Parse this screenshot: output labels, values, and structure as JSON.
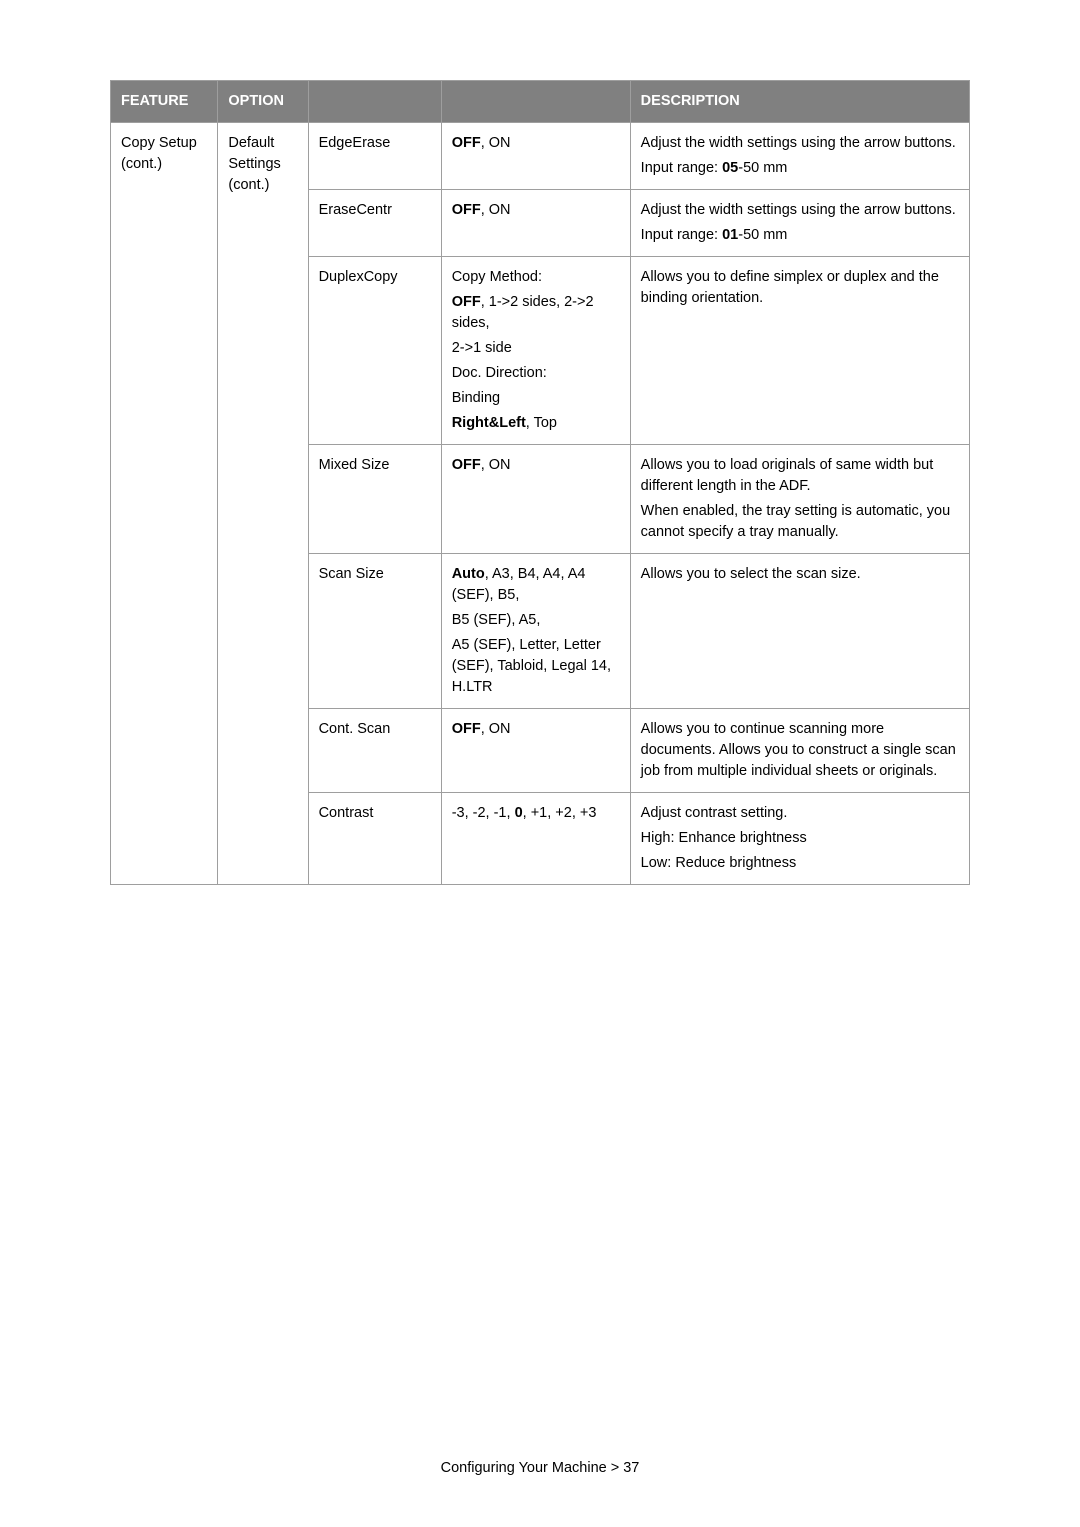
{
  "table": {
    "header": {
      "feature": "FEATURE",
      "option": "OPTION",
      "col3": "",
      "col4": "",
      "description": "DESCRIPTION"
    },
    "feature_lines": [
      "Copy Setup",
      "(cont.)"
    ],
    "option_lines": [
      "Default",
      "Settings",
      "(cont.)"
    ],
    "rows": [
      {
        "sub": "EdgeErase",
        "val_parts": [
          {
            "t": "OFF",
            "b": true
          },
          {
            "t": ", ON",
            "b": false
          }
        ],
        "desc_blocks": [
          [
            {
              "t": "Adjust the width settings using the arrow buttons.",
              "b": false
            }
          ],
          [
            {
              "t": "Input range: ",
              "b": false
            },
            {
              "t": "05",
              "b": true
            },
            {
              "t": "-50 mm",
              "b": false
            }
          ]
        ]
      },
      {
        "sub": "EraseCentr",
        "val_parts": [
          {
            "t": "OFF",
            "b": true
          },
          {
            "t": ", ON",
            "b": false
          }
        ],
        "desc_blocks": [
          [
            {
              "t": "Adjust the width settings using the arrow buttons.",
              "b": false
            }
          ],
          [
            {
              "t": "Input range: ",
              "b": false
            },
            {
              "t": "01",
              "b": true
            },
            {
              "t": "-50 mm",
              "b": false
            }
          ]
        ]
      },
      {
        "sub": "DuplexCopy",
        "val_blocks": [
          [
            {
              "t": "Copy Method:",
              "b": false
            }
          ],
          [
            {
              "t": "OFF",
              "b": true
            },
            {
              "t": ", 1->2 sides, 2->2 sides,",
              "b": false
            }
          ],
          [
            {
              "t": "2->1 side",
              "b": false
            }
          ],
          [
            {
              "t": "Doc. Direction:",
              "b": false
            }
          ],
          [
            {
              "t": "Binding",
              "b": false
            }
          ],
          [
            {
              "t": "Right&Left",
              "b": true
            },
            {
              "t": ", Top",
              "b": false
            }
          ]
        ],
        "desc_blocks": [
          [
            {
              "t": "Allows you to define simplex or duplex and the binding orientation.",
              "b": false
            }
          ]
        ]
      },
      {
        "sub": "Mixed Size",
        "val_parts": [
          {
            "t": "OFF",
            "b": true
          },
          {
            "t": ", ON",
            "b": false
          }
        ],
        "desc_blocks": [
          [
            {
              "t": "Allows you to load originals of same width but different length in the ADF.",
              "b": false
            }
          ],
          [
            {
              "t": "When enabled, the tray setting is automatic, you cannot specify a tray manually.",
              "b": false
            }
          ]
        ]
      },
      {
        "sub": "Scan Size",
        "val_blocks": [
          [
            {
              "t": "Auto",
              "b": true
            },
            {
              "t": ", A3, B4, A4, A4 (SEF), B5,",
              "b": false
            }
          ],
          [
            {
              "t": "B5 (SEF), A5,",
              "b": false
            }
          ],
          [
            {
              "t": "A5 (SEF), Letter, Letter (SEF), Tabloid, Legal 14, H.LTR",
              "b": false
            }
          ]
        ],
        "desc_blocks": [
          [
            {
              "t": "Allows you to select the scan size.",
              "b": false
            }
          ]
        ]
      },
      {
        "sub": "Cont. Scan",
        "val_parts": [
          {
            "t": "OFF",
            "b": true
          },
          {
            "t": ", ON",
            "b": false
          }
        ],
        "desc_blocks": [
          [
            {
              "t": "Allows you to continue scanning more documents. Allows you to construct a single scan job from multiple individual sheets or originals.",
              "b": false
            }
          ]
        ]
      },
      {
        "sub": "Contrast",
        "val_blocks": [
          [
            {
              "t": "-3, -2, -1, ",
              "b": false
            },
            {
              "t": "0",
              "b": true
            },
            {
              "t": ", +1, +2, +3",
              "b": false
            }
          ]
        ],
        "desc_blocks": [
          [
            {
              "t": "Adjust contrast setting.",
              "b": false
            }
          ],
          [
            {
              "t": "High: Enhance brightness",
              "b": false
            }
          ],
          [
            {
              "t": "Low: Reduce brightness",
              "b": false
            }
          ]
        ]
      }
    ]
  },
  "footer": "Configuring Your Machine > 37"
}
